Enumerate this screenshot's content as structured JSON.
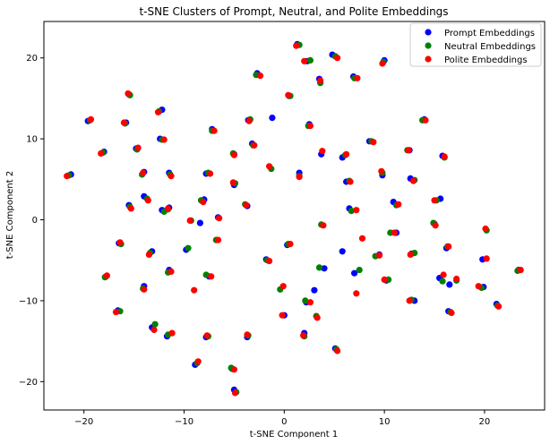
{
  "chart_data": {
    "type": "scatter",
    "title": "t-SNE Clusters of Prompt, Neutral, and Polite Embeddings",
    "xlabel": "t-SNE Component 1",
    "ylabel": "t-SNE Component 2",
    "xlim": [
      -24,
      26
    ],
    "ylim": [
      -23.5,
      24.5
    ],
    "xticks": [
      -20,
      -10,
      0,
      10,
      20
    ],
    "yticks": [
      -20,
      -10,
      0,
      10,
      20
    ],
    "grid": false,
    "legend_position": "top-right",
    "series": [
      {
        "name": "Prompt Embeddings",
        "color": "#0000ff",
        "points": [
          [
            -21.3,
            5.6
          ],
          [
            -19.6,
            12.2
          ],
          [
            -18.0,
            8.4
          ],
          [
            -15.5,
            15.5
          ],
          [
            -15.8,
            12.0
          ],
          [
            -14.8,
            8.8
          ],
          [
            -15.5,
            1.8
          ],
          [
            -14.0,
            5.9
          ],
          [
            -14.0,
            2.9
          ],
          [
            -16.5,
            -2.9
          ],
          [
            -16.6,
            -11.2
          ],
          [
            -17.8,
            -7.0
          ],
          [
            -13.2,
            -3.9
          ],
          [
            -14.0,
            -8.2
          ],
          [
            -13.2,
            -13.3
          ],
          [
            -12.2,
            13.6
          ],
          [
            -12.4,
            10.0
          ],
          [
            -12.2,
            1.2
          ],
          [
            -11.5,
            5.8
          ],
          [
            -11.5,
            1.5
          ],
          [
            -11.7,
            -14.4
          ],
          [
            -11.5,
            -6.2
          ],
          [
            -9.8,
            -3.7
          ],
          [
            -8.9,
            -17.9
          ],
          [
            -8.4,
            -0.4
          ],
          [
            -8.0,
            2.5
          ],
          [
            -7.8,
            5.7
          ],
          [
            -7.2,
            11.2
          ],
          [
            -6.6,
            0.3
          ],
          [
            -7.8,
            -14.5
          ],
          [
            -7.5,
            -7.0
          ],
          [
            -5.0,
            4.3
          ],
          [
            -5.0,
            8.1
          ],
          [
            -5.2,
            -18.4
          ],
          [
            -5.0,
            -21.0
          ],
          [
            -3.6,
            12.3
          ],
          [
            -3.7,
            1.7
          ],
          [
            -3.2,
            9.4
          ],
          [
            -2.7,
            18.1
          ],
          [
            -1.8,
            -4.9
          ],
          [
            -1.2,
            12.6
          ],
          [
            -3.7,
            -14.5
          ],
          [
            0.0,
            -11.8
          ],
          [
            0.3,
            -3.1
          ],
          [
            0.5,
            15.3
          ],
          [
            1.5,
            5.8
          ],
          [
            1.3,
            21.7
          ],
          [
            2.0,
            -14.0
          ],
          [
            2.2,
            -10.2
          ],
          [
            2.3,
            19.6
          ],
          [
            2.5,
            11.8
          ],
          [
            3.0,
            -8.7
          ],
          [
            3.7,
            8.1
          ],
          [
            3.5,
            17.4
          ],
          [
            4.0,
            -6.0
          ],
          [
            4.8,
            20.4
          ],
          [
            5.1,
            -15.9
          ],
          [
            5.8,
            7.7
          ],
          [
            5.8,
            -3.9
          ],
          [
            6.2,
            4.7
          ],
          [
            6.5,
            1.4
          ],
          [
            6.9,
            17.7
          ],
          [
            7.0,
            -6.6
          ],
          [
            8.5,
            9.7
          ],
          [
            9.5,
            -4.3
          ],
          [
            9.8,
            5.5
          ],
          [
            10.0,
            19.7
          ],
          [
            10.9,
            2.2
          ],
          [
            11.2,
            -1.6
          ],
          [
            10.2,
            -7.5
          ],
          [
            12.5,
            8.6
          ],
          [
            12.6,
            5.1
          ],
          [
            12.7,
            -4.2
          ],
          [
            13.0,
            -10.0
          ],
          [
            14.0,
            12.4
          ],
          [
            15.0,
            -0.5
          ],
          [
            15.6,
            2.6
          ],
          [
            15.5,
            -7.2
          ],
          [
            15.8,
            7.9
          ],
          [
            16.2,
            -3.5
          ],
          [
            16.4,
            -11.3
          ],
          [
            16.5,
            -8.0
          ],
          [
            19.8,
            -4.9
          ],
          [
            19.9,
            -8.3
          ],
          [
            21.2,
            -10.4
          ],
          [
            23.4,
            -6.2
          ]
        ]
      },
      {
        "name": "Neutral Embeddings",
        "color": "#008000",
        "points": [
          [
            -21.5,
            5.5
          ],
          [
            -19.4,
            12.3
          ],
          [
            -18.1,
            8.3
          ],
          [
            -15.4,
            15.4
          ],
          [
            -15.9,
            11.9
          ],
          [
            -14.7,
            8.7
          ],
          [
            -15.4,
            1.6
          ],
          [
            -14.2,
            5.6
          ],
          [
            -13.7,
            2.6
          ],
          [
            -16.3,
            -3.0
          ],
          [
            -16.4,
            -11.3
          ],
          [
            -17.9,
            -7.1
          ],
          [
            -13.4,
            -4.1
          ],
          [
            -14.1,
            -8.5
          ],
          [
            -12.9,
            -12.9
          ],
          [
            -12.5,
            13.4
          ],
          [
            -12.2,
            9.9
          ],
          [
            -12.0,
            1.0
          ],
          [
            -11.4,
            5.6
          ],
          [
            -11.6,
            1.3
          ],
          [
            -11.6,
            -14.2
          ],
          [
            -11.6,
            -6.5
          ],
          [
            -9.6,
            -3.5
          ],
          [
            -8.7,
            -17.7
          ],
          [
            -9.3,
            -0.1
          ],
          [
            -8.3,
            2.4
          ],
          [
            -7.6,
            5.8
          ],
          [
            -7.2,
            11.0
          ],
          [
            -6.8,
            -2.5
          ],
          [
            -7.6,
            -14.4
          ],
          [
            -7.8,
            -6.8
          ],
          [
            -4.9,
            4.5
          ],
          [
            -5.1,
            8.2
          ],
          [
            -5.3,
            -18.3
          ],
          [
            -4.8,
            -21.3
          ],
          [
            -3.4,
            12.4
          ],
          [
            -3.9,
            1.9
          ],
          [
            -3.1,
            9.2
          ],
          [
            -2.8,
            17.9
          ],
          [
            -1.7,
            -5.0
          ],
          [
            -1.3,
            6.3
          ],
          [
            -3.6,
            -14.3
          ],
          [
            -0.4,
            -8.6
          ],
          [
            0.4,
            -3.0
          ],
          [
            0.6,
            15.3
          ],
          [
            1.5,
            5.4
          ],
          [
            1.5,
            21.6
          ],
          [
            2.0,
            -14.4
          ],
          [
            2.1,
            -10.0
          ],
          [
            2.6,
            19.7
          ],
          [
            2.4,
            11.6
          ],
          [
            3.2,
            -11.9
          ],
          [
            3.5,
            -5.9
          ],
          [
            3.6,
            16.9
          ],
          [
            3.7,
            -0.6
          ],
          [
            5.1,
            20.2
          ],
          [
            5.2,
            -16.0
          ],
          [
            6.1,
            8.0
          ],
          [
            6.5,
            4.8
          ],
          [
            6.7,
            1.1
          ],
          [
            7.0,
            17.5
          ],
          [
            7.5,
            -6.2
          ],
          [
            8.7,
            9.7
          ],
          [
            9.1,
            -4.5
          ],
          [
            9.8,
            5.8
          ],
          [
            9.9,
            19.5
          ],
          [
            11.2,
            1.8
          ],
          [
            10.6,
            -1.6
          ],
          [
            10.4,
            -7.4
          ],
          [
            12.3,
            8.6
          ],
          [
            13.0,
            4.9
          ],
          [
            13.0,
            -4.1
          ],
          [
            12.7,
            -9.9
          ],
          [
            13.8,
            12.3
          ],
          [
            14.9,
            -0.4
          ],
          [
            15.2,
            2.4
          ],
          [
            15.8,
            -7.6
          ],
          [
            16.0,
            7.7
          ],
          [
            16.3,
            -3.3
          ],
          [
            16.6,
            -11.4
          ],
          [
            17.2,
            -7.5
          ],
          [
            20.2,
            -1.3
          ],
          [
            19.7,
            -8.4
          ],
          [
            21.3,
            -10.6
          ],
          [
            23.3,
            -6.3
          ]
        ]
      },
      {
        "name": "Polite Embeddings",
        "color": "#ff0000",
        "points": [
          [
            -21.7,
            5.4
          ],
          [
            -19.3,
            12.4
          ],
          [
            -18.3,
            8.2
          ],
          [
            -15.6,
            15.6
          ],
          [
            -16.0,
            12.0
          ],
          [
            -14.6,
            8.9
          ],
          [
            -15.3,
            1.4
          ],
          [
            -14.1,
            5.8
          ],
          [
            -13.6,
            2.4
          ],
          [
            -16.4,
            -2.8
          ],
          [
            -16.8,
            -11.4
          ],
          [
            -17.7,
            -6.9
          ],
          [
            -13.5,
            -4.3
          ],
          [
            -14.0,
            -8.6
          ],
          [
            -13.0,
            -13.6
          ],
          [
            -12.6,
            13.3
          ],
          [
            -12.0,
            9.9
          ],
          [
            -11.6,
            1.4
          ],
          [
            -11.3,
            5.4
          ],
          [
            -11.3,
            -6.4
          ],
          [
            -11.2,
            -14.0
          ],
          [
            -9.0,
            -8.7
          ],
          [
            -9.4,
            -0.1
          ],
          [
            -8.6,
            -17.5
          ],
          [
            -8.1,
            2.2
          ],
          [
            -7.4,
            5.7
          ],
          [
            -7.0,
            11.0
          ],
          [
            -6.5,
            0.2
          ],
          [
            -6.6,
            -2.5
          ],
          [
            -7.7,
            -14.3
          ],
          [
            -7.3,
            -7.0
          ],
          [
            -5.1,
            4.6
          ],
          [
            -5.0,
            8.0
          ],
          [
            -5.0,
            -18.5
          ],
          [
            -4.9,
            -21.4
          ],
          [
            -3.5,
            12.2
          ],
          [
            -3.8,
            1.8
          ],
          [
            -3.0,
            9.2
          ],
          [
            -2.4,
            17.8
          ],
          [
            -1.5,
            -5.1
          ],
          [
            -1.5,
            6.6
          ],
          [
            -3.7,
            -14.2
          ],
          [
            -0.2,
            -11.8
          ],
          [
            -0.1,
            -8.2
          ],
          [
            0.6,
            -3.0
          ],
          [
            0.4,
            15.4
          ],
          [
            1.5,
            5.3
          ],
          [
            1.2,
            21.5
          ],
          [
            1.9,
            -14.3
          ],
          [
            2.6,
            -10.2
          ],
          [
            2.0,
            19.6
          ],
          [
            2.6,
            11.6
          ],
          [
            3.3,
            -12.1
          ],
          [
            3.6,
            17.2
          ],
          [
            3.8,
            8.5
          ],
          [
            3.9,
            -0.7
          ],
          [
            5.3,
            20.0
          ],
          [
            5.3,
            -16.2
          ],
          [
            6.2,
            8.1
          ],
          [
            6.6,
            4.7
          ],
          [
            7.2,
            1.2
          ],
          [
            7.3,
            17.5
          ],
          [
            7.2,
            -9.1
          ],
          [
            7.8,
            -2.3
          ],
          [
            8.9,
            9.6
          ],
          [
            9.5,
            -4.4
          ],
          [
            9.7,
            6.0
          ],
          [
            9.8,
            19.3
          ],
          [
            11.4,
            1.9
          ],
          [
            11.0,
            -1.6
          ],
          [
            10.0,
            -7.4
          ],
          [
            12.4,
            8.6
          ],
          [
            12.9,
            4.8
          ],
          [
            12.6,
            -4.3
          ],
          [
            12.5,
            -10.0
          ],
          [
            14.1,
            12.3
          ],
          [
            15.1,
            -0.7
          ],
          [
            15.0,
            2.4
          ],
          [
            15.9,
            -6.8
          ],
          [
            16.0,
            7.8
          ],
          [
            16.4,
            -3.3
          ],
          [
            16.7,
            -11.5
          ],
          [
            17.2,
            -7.3
          ],
          [
            20.1,
            -1.1
          ],
          [
            19.4,
            -8.2
          ],
          [
            20.2,
            -4.8
          ],
          [
            21.4,
            -10.7
          ],
          [
            23.6,
            -6.2
          ]
        ]
      }
    ]
  }
}
